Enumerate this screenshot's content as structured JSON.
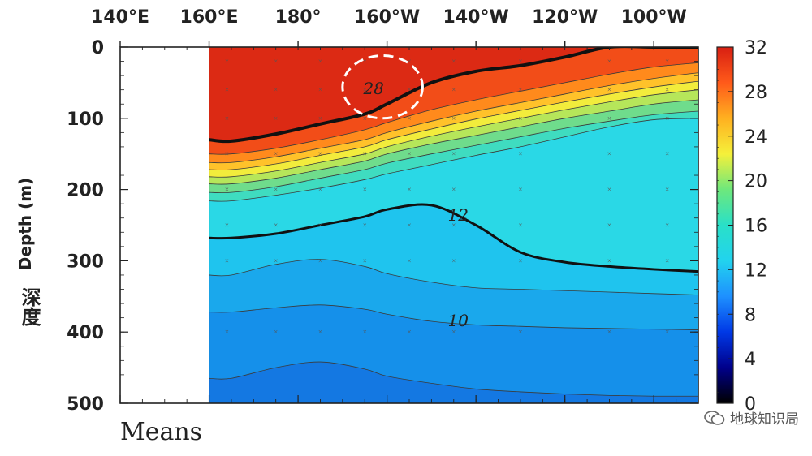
{
  "chart_data": {
    "type": "heatmap",
    "title": "",
    "xlabel": "",
    "ylabel": "Depth (m)",
    "ylabel_cn": "深度",
    "x_tick_labels": [
      "140°E",
      "160°E",
      "180°",
      "160°W",
      "140°W",
      "120°W",
      "100°W"
    ],
    "x_ticks_lon": [
      140,
      160,
      180,
      200,
      220,
      240,
      260
    ],
    "xlim_lon": [
      140,
      270
    ],
    "y_ticks": [
      0,
      100,
      200,
      300,
      400,
      500
    ],
    "ylim": [
      500,
      0
    ],
    "left_panel_label": "Means",
    "data_start_lon": 160,
    "colorbar": {
      "ticks": [
        0,
        4,
        8,
        12,
        16,
        20,
        24,
        28,
        32
      ],
      "range": [
        0,
        32
      ],
      "colors": [
        "#000000",
        "#00008b",
        "#0039e6",
        "#1e90ff",
        "#22d3ee",
        "#29e0c8",
        "#6ee87c",
        "#f5f03a",
        "#ffb020",
        "#ff5a1a",
        "#d81f12"
      ]
    },
    "isotherm_depths": {
      "lon": [
        160,
        165,
        175,
        185,
        195,
        200,
        210,
        220,
        230,
        240,
        250,
        260,
        270
      ],
      "t28": [
        130,
        132,
        122,
        108,
        94,
        80,
        50,
        34,
        26,
        14,
        0,
        0,
        0
      ],
      "t26": [
        150,
        150,
        142,
        130,
        116,
        106,
        88,
        74,
        62,
        50,
        38,
        28,
        22
      ],
      "t24": [
        162,
        162,
        154,
        142,
        130,
        120,
        104,
        90,
        78,
        66,
        54,
        44,
        36
      ],
      "t22": [
        172,
        172,
        164,
        152,
        140,
        130,
        115,
        101,
        89,
        77,
        66,
        56,
        48
      ],
      "t20": [
        182,
        182,
        174,
        162,
        150,
        140,
        125,
        112,
        100,
        88,
        77,
        67,
        60
      ],
      "t18": [
        192,
        192,
        184,
        172,
        160,
        150,
        136,
        124,
        112,
        100,
        90,
        80,
        74
      ],
      "t16": [
        204,
        204,
        196,
        184,
        172,
        163,
        150,
        138,
        126,
        114,
        104,
        95,
        90
      ],
      "t14": [
        216,
        216,
        208,
        198,
        186,
        178,
        165,
        152,
        140,
        126,
        112,
        102,
        100
      ],
      "t12": [
        268,
        268,
        262,
        250,
        238,
        228,
        222,
        250,
        288,
        302,
        308,
        312,
        315
      ],
      "t11": [
        320,
        320,
        305,
        298,
        308,
        318,
        330,
        338,
        340,
        342,
        344,
        346,
        348
      ],
      "t10": [
        372,
        372,
        366,
        362,
        368,
        375,
        385,
        390,
        392,
        394,
        395,
        396,
        397
      ],
      "t9": [
        465,
        465,
        450,
        442,
        452,
        462,
        472,
        480,
        484,
        487,
        489,
        490,
        490
      ]
    },
    "sample_points": {
      "lon": [
        164,
        175,
        185,
        195,
        205,
        215,
        230,
        250,
        263
      ],
      "depths": [
        20,
        60,
        100,
        150,
        200,
        250,
        300,
        400
      ]
    },
    "contour_labels": [
      {
        "text": "28",
        "lon": 197,
        "depth": 58
      },
      {
        "text": "12",
        "lon": 216,
        "depth": 236
      },
      {
        "text": "10",
        "lon": 216,
        "depth": 384
      }
    ],
    "highlight": {
      "shape": "dashed-ellipse",
      "lon_range": [
        190,
        208
      ],
      "depth_range": [
        12,
        100
      ]
    },
    "grid": false,
    "legend": "colorbar-right"
  },
  "watermark": {
    "text": "地球知识局"
  }
}
